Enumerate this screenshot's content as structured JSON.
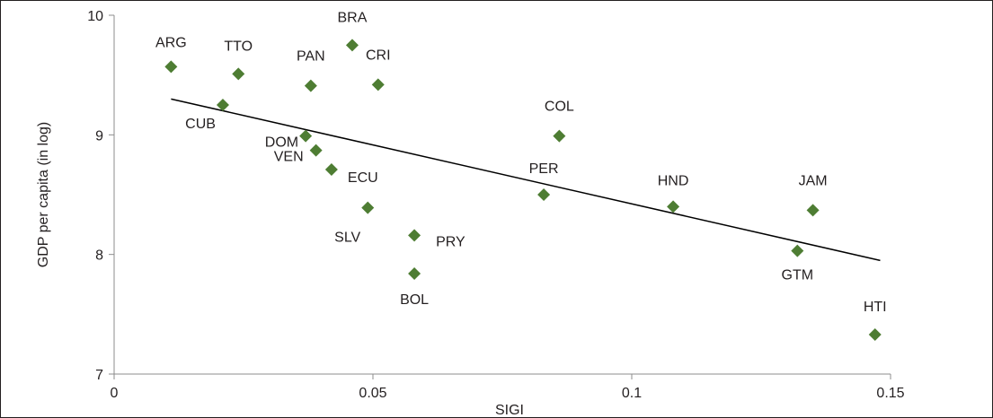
{
  "chart_data": {
    "type": "scatter",
    "title": "",
    "xlabel": "SIGI",
    "ylabel": "GDP per capita (in log)",
    "xlim": [
      0,
      0.15
    ],
    "ylim": [
      7,
      10
    ],
    "xticks": [
      0,
      0.05,
      0.1,
      0.15
    ],
    "xtick_labels": [
      "0",
      "0.05",
      "0.1",
      "0.15"
    ],
    "yticks": [
      7,
      8,
      9,
      10
    ],
    "ytick_labels": [
      "7",
      "8",
      "9",
      "10"
    ],
    "grid": false,
    "legend": "none",
    "marker_color": "#4e7d33",
    "trendline": {
      "x": [
        0.011,
        0.148
      ],
      "y": [
        9.3,
        7.95
      ],
      "color": "#000000"
    },
    "points": [
      {
        "label": "ARG",
        "x": 0.011,
        "y": 9.57
      },
      {
        "label": "TTO",
        "x": 0.024,
        "y": 9.51
      },
      {
        "label": "CUB",
        "x": 0.021,
        "y": 9.25
      },
      {
        "label": "BRA",
        "x": 0.046,
        "y": 9.75
      },
      {
        "label": "PAN",
        "x": 0.038,
        "y": 9.41
      },
      {
        "label": "CRI",
        "x": 0.051,
        "y": 9.42
      },
      {
        "label": "DOM",
        "x": 0.037,
        "y": 8.99
      },
      {
        "label": "VEN",
        "x": 0.039,
        "y": 8.87
      },
      {
        "label": "ECU",
        "x": 0.042,
        "y": 8.71
      },
      {
        "label": "SLV",
        "x": 0.049,
        "y": 8.39
      },
      {
        "label": "PRY",
        "x": 0.058,
        "y": 8.16
      },
      {
        "label": "BOL",
        "x": 0.058,
        "y": 7.84
      },
      {
        "label": "COL",
        "x": 0.086,
        "y": 8.99
      },
      {
        "label": "PER",
        "x": 0.083,
        "y": 8.5
      },
      {
        "label": "HND",
        "x": 0.108,
        "y": 8.4
      },
      {
        "label": "JAM",
        "x": 0.135,
        "y": 8.37
      },
      {
        "label": "GTM",
        "x": 0.132,
        "y": 8.03
      },
      {
        "label": "HTI",
        "x": 0.147,
        "y": 7.33
      }
    ]
  }
}
